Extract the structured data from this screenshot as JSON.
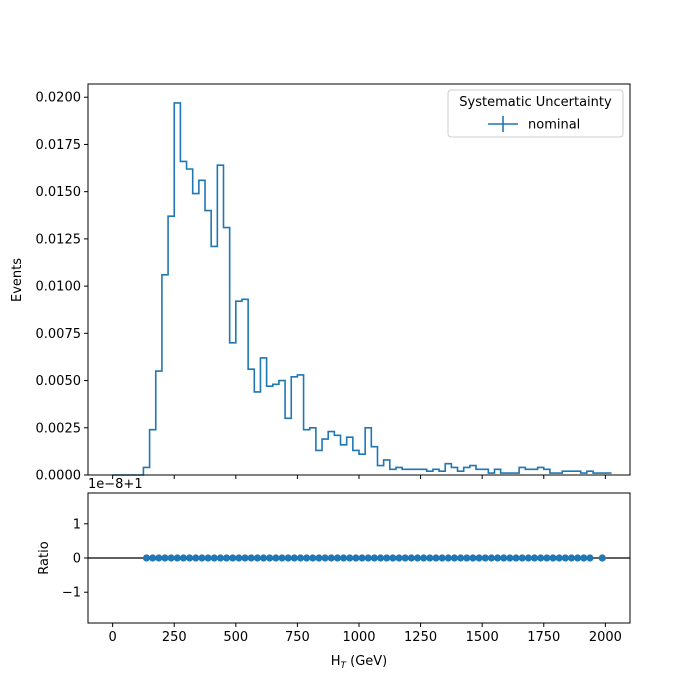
{
  "chart_data": [
    {
      "type": "histogram-step",
      "ylabel": "Events",
      "xlim": [
        -100,
        2100
      ],
      "ylim": [
        0,
        0.0207
      ],
      "x_ticks": [
        0,
        250,
        500,
        750,
        1000,
        1250,
        1500,
        1750,
        2000
      ],
      "y_ticks": [
        0.0,
        0.0025,
        0.005,
        0.0075,
        0.01,
        0.0125,
        0.015,
        0.0175,
        0.02
      ],
      "y_tick_labels": [
        "0.0000",
        "0.0025",
        "0.0050",
        "0.0075",
        "0.0100",
        "0.0125",
        "0.0150",
        "0.0175",
        "0.0200"
      ],
      "bin_start": 0,
      "bin_width": 25,
      "legend": {
        "title": "Systematic Uncertainty",
        "entries": [
          "nominal"
        ],
        "position": "top-right"
      },
      "series": [
        {
          "name": "nominal",
          "color": "#1f77b4",
          "values": [
            0,
            0,
            0,
            0,
            0,
            0.0004,
            0.0024,
            0.0055,
            0.0106,
            0.0137,
            0.0197,
            0.0166,
            0.0162,
            0.0149,
            0.0156,
            0.014,
            0.0121,
            0.0164,
            0.0131,
            0.007,
            0.0092,
            0.0093,
            0.0056,
            0.0044,
            0.0062,
            0.0047,
            0.0048,
            0.005,
            0.003,
            0.0052,
            0.0053,
            0.0024,
            0.0025,
            0.0013,
            0.0019,
            0.0023,
            0.0021,
            0.0016,
            0.002,
            0.0013,
            0.0011,
            0.0025,
            0.0015,
            0.0005,
            0.0008,
            0.0003,
            0.0004,
            0.0003,
            0.0003,
            0.0003,
            0.0003,
            0.0002,
            0.0003,
            0.0002,
            0.0006,
            0.0004,
            0.0002,
            0.0004,
            0.0005,
            0.0003,
            0.0003,
            0.0001,
            0.0003,
            0.0001,
            0.0001,
            0.0001,
            0.0004,
            0.0003,
            0.0003,
            0.0004,
            0.0003,
            0.0001,
            0.0001,
            0.0002,
            0.0002,
            0.0002,
            0.0001,
            0.0002,
            0.0001,
            0.0001,
            0.0001
          ]
        }
      ]
    },
    {
      "type": "scatter",
      "xlabel": "H_T (GeV)",
      "ylabel": "Ratio",
      "offset_text": "1e−8+1",
      "xlim": [
        -100,
        2100
      ],
      "ylim": [
        -1.9,
        1.9
      ],
      "x_ticks": [
        0,
        250,
        500,
        750,
        1000,
        1250,
        1500,
        1750,
        2000
      ],
      "x_tick_labels": [
        "0",
        "250",
        "500",
        "750",
        "1000",
        "1250",
        "1500",
        "1750",
        "2000"
      ],
      "y_ticks": [
        1,
        0,
        -1
      ],
      "y_tick_labels": [
        "1",
        "0",
        "−1"
      ],
      "reference_line": 0,
      "series": [
        {
          "name": "nominal",
          "color": "#1f77b4",
          "x": [
            137.5,
            162.5,
            187.5,
            212.5,
            237.5,
            262.5,
            287.5,
            312.5,
            337.5,
            362.5,
            387.5,
            412.5,
            437.5,
            462.5,
            487.5,
            512.5,
            537.5,
            562.5,
            587.5,
            612.5,
            637.5,
            662.5,
            687.5,
            712.5,
            737.5,
            762.5,
            787.5,
            812.5,
            837.5,
            862.5,
            887.5,
            912.5,
            937.5,
            962.5,
            987.5,
            1012.5,
            1037.5,
            1062.5,
            1087.5,
            1112.5,
            1137.5,
            1162.5,
            1187.5,
            1212.5,
            1237.5,
            1262.5,
            1287.5,
            1312.5,
            1337.5,
            1362.5,
            1387.5,
            1412.5,
            1437.5,
            1462.5,
            1487.5,
            1512.5,
            1537.5,
            1562.5,
            1587.5,
            1612.5,
            1637.5,
            1662.5,
            1687.5,
            1712.5,
            1737.5,
            1762.5,
            1787.5,
            1812.5,
            1837.5,
            1862.5,
            1887.5,
            1912.5,
            1937.5,
            1987.5
          ],
          "y": [
            0,
            0,
            0,
            0,
            0,
            0,
            0,
            0,
            0,
            0,
            0,
            0,
            0,
            0,
            0,
            0,
            0,
            0,
            0,
            0,
            0,
            0,
            0,
            0,
            0,
            0,
            0,
            0,
            0,
            0,
            0,
            0,
            0,
            0,
            0,
            0,
            0,
            0,
            0,
            0,
            0,
            0,
            0,
            0,
            0,
            0,
            0,
            0,
            0,
            0,
            0,
            0,
            0,
            0,
            0,
            0,
            0,
            0,
            0,
            0,
            0,
            0,
            0,
            0,
            0,
            0,
            0,
            0,
            0,
            0,
            0,
            0,
            0,
            0
          ]
        }
      ]
    }
  ]
}
